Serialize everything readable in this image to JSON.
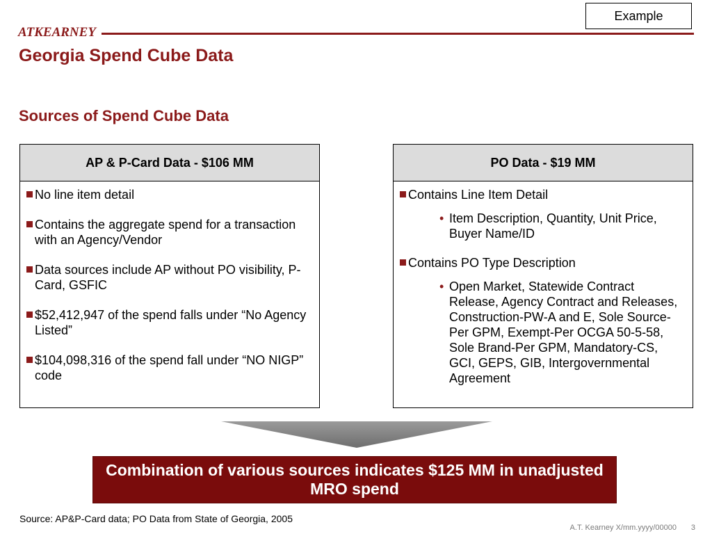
{
  "tag": "Example",
  "logo": "ATKEARNEY",
  "title": "Georgia Spend Cube Data",
  "subtitle": "Sources of Spend Cube Data",
  "left_panel": {
    "header": "AP & P-Card Data - $106 MM",
    "items": [
      "No line item detail",
      "Contains the aggregate spend for a transaction with an Agency/Vendor",
      "Data sources include AP without PO visibility, P-Card, GSFIC",
      "$52,412,947 of the spend falls under “No Agency  Listed”",
      "$104,098,316 of the spend fall under “NO NIGP” code"
    ]
  },
  "right_panel": {
    "header": "PO Data - $19 MM",
    "items": [
      {
        "text": "Contains Line Item Detail",
        "sub": "Item Description, Quantity, Unit Price, Buyer Name/ID"
      },
      {
        "text": "Contains PO Type Description",
        "sub": "Open Market, Statewide Contract Release, Agency Contract and Releases, Construction-PW-A and E, Sole Source-Per GPM, Exempt-Per OCGA 50-5-58, Sole Brand-Per GPM, Mandatory-CS, GCI, GEPS, GIB, Intergovernmental Agreement"
      }
    ]
  },
  "callout": "Combination of various sources indicates $125 MM in unadjusted MRO spend",
  "source": "Source: AP&P-Card data; PO Data from State of Georgia, 2005",
  "footer": "A.T. Kearney X/mm.yyyy/00000",
  "page_number": "3",
  "colors": {
    "brand": "#8b1a1a",
    "callout_bg": "#7a0c0c",
    "panel_header_bg": "#dcdcdc",
    "arrow": "#808080"
  },
  "icons": {
    "bullet": "square-bullet-icon",
    "sub_bullet": "dot-bullet-icon",
    "arrow": "down-arrow-icon"
  }
}
